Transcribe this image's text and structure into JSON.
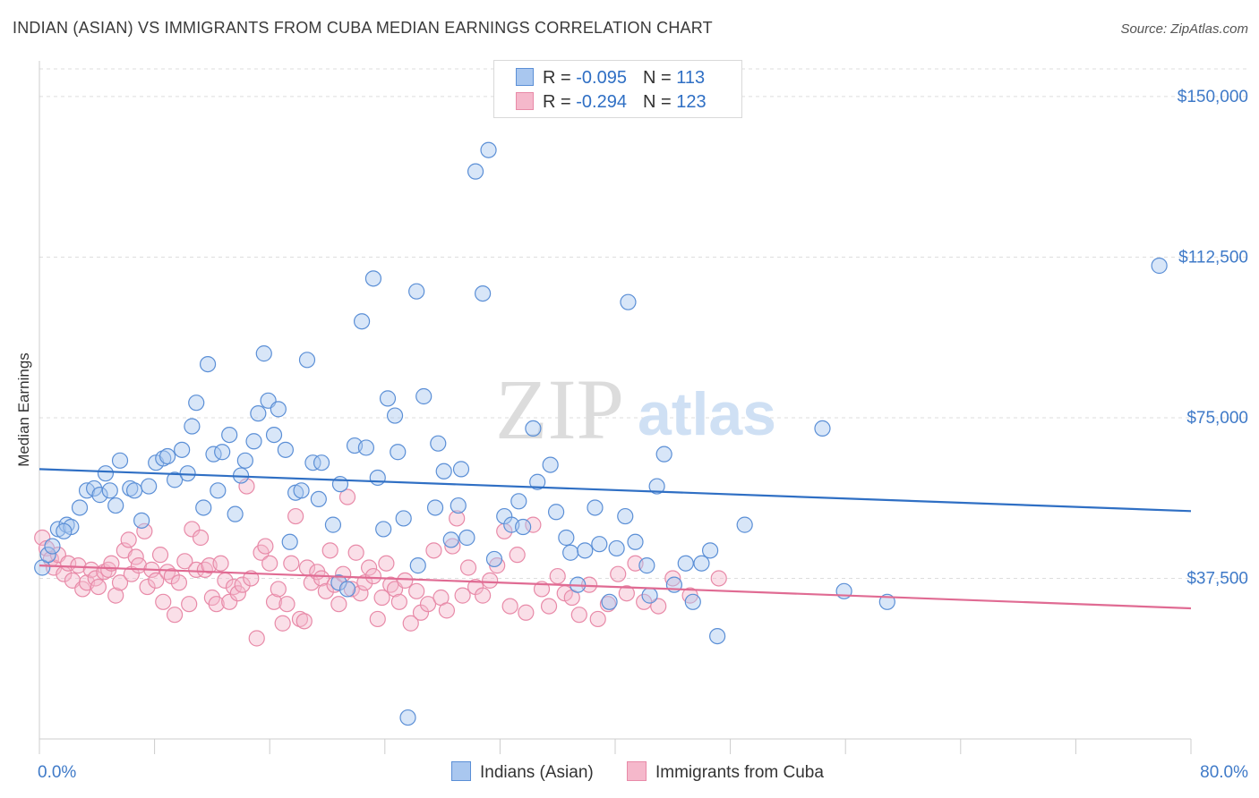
{
  "title": "INDIAN (ASIAN) VS IMMIGRANTS FROM CUBA MEDIAN EARNINGS CORRELATION CHART",
  "source": "Source: ZipAtlas.com",
  "watermark": {
    "zip": "ZIP",
    "atlas": "atlas"
  },
  "legend": {
    "series1": {
      "r_label": "R = ",
      "r_value": "-0.095",
      "n_label": "N = ",
      "n_value": "113"
    },
    "series2": {
      "r_label": "R = ",
      "r_value": "-0.294",
      "n_label": "N = ",
      "n_value": "123"
    }
  },
  "colors": {
    "blue_fill": "#a9c7ef",
    "blue_stroke": "#5b8fd6",
    "blue_line": "#2f6fc4",
    "pink_fill": "#f5b8cb",
    "pink_stroke": "#e88aa8",
    "pink_line": "#e06b93",
    "axis_label": "#3f7ac8",
    "grid": "#dddddd"
  },
  "chart_data": {
    "type": "scatter",
    "xlabel": "",
    "ylabel": "Median Earnings",
    "xlim": [
      0,
      80
    ],
    "ylim": [
      0,
      160000
    ],
    "x_tick_labels": [
      "0.0%",
      "80.0%"
    ],
    "y_ticks": [
      37500,
      75000,
      112500,
      150000
    ],
    "y_tick_labels": [
      "$37,500",
      "$75,000",
      "$112,500",
      "$150,000"
    ],
    "grid": "horizontal-dashed",
    "legend_placement": "top-center",
    "series": [
      {
        "name": "Indians (Asian)",
        "trend": [
          [
            0,
            63000
          ],
          [
            80,
            53200
          ]
        ],
        "points": [
          [
            0.2,
            40000
          ],
          [
            0.6,
            43000
          ],
          [
            0.9,
            45000
          ],
          [
            1.3,
            49000
          ],
          [
            1.9,
            50000
          ],
          [
            2.2,
            49500
          ],
          [
            1.7,
            48500
          ],
          [
            2.8,
            54000
          ],
          [
            3.3,
            58000
          ],
          [
            3.8,
            58500
          ],
          [
            4.2,
            57000
          ],
          [
            4.6,
            62000
          ],
          [
            4.9,
            58000
          ],
          [
            5.3,
            54500
          ],
          [
            5.6,
            65000
          ],
          [
            6.3,
            58500
          ],
          [
            6.6,
            58000
          ],
          [
            7.1,
            51000
          ],
          [
            7.6,
            59000
          ],
          [
            8.1,
            64500
          ],
          [
            8.6,
            65500
          ],
          [
            8.9,
            66000
          ],
          [
            9.4,
            60500
          ],
          [
            9.9,
            67500
          ],
          [
            10.3,
            62000
          ],
          [
            10.6,
            73000
          ],
          [
            10.9,
            78500
          ],
          [
            11.4,
            54000
          ],
          [
            11.7,
            87500
          ],
          [
            12.1,
            66500
          ],
          [
            12.4,
            58000
          ],
          [
            12.7,
            67000
          ],
          [
            13.2,
            71000
          ],
          [
            13.6,
            52500
          ],
          [
            14.0,
            61500
          ],
          [
            14.3,
            65000
          ],
          [
            14.9,
            69500
          ],
          [
            15.2,
            76000
          ],
          [
            15.6,
            90000
          ],
          [
            15.9,
            79000
          ],
          [
            16.3,
            71000
          ],
          [
            16.6,
            77000
          ],
          [
            17.1,
            67500
          ],
          [
            17.4,
            46000
          ],
          [
            17.8,
            57500
          ],
          [
            18.2,
            58000
          ],
          [
            18.6,
            88500
          ],
          [
            19.0,
            64500
          ],
          [
            19.4,
            56000
          ],
          [
            19.6,
            64500
          ],
          [
            20.4,
            50000
          ],
          [
            20.8,
            36500
          ],
          [
            20.9,
            59500
          ],
          [
            21.4,
            35000
          ],
          [
            21.9,
            68500
          ],
          [
            22.4,
            97500
          ],
          [
            22.7,
            68000
          ],
          [
            23.2,
            107500
          ],
          [
            23.5,
            61000
          ],
          [
            23.9,
            49000
          ],
          [
            24.2,
            79500
          ],
          [
            24.7,
            75500
          ],
          [
            24.9,
            67000
          ],
          [
            25.3,
            51500
          ],
          [
            25.6,
            5000
          ],
          [
            26.2,
            104500
          ],
          [
            26.3,
            40500
          ],
          [
            26.7,
            80000
          ],
          [
            27.5,
            54000
          ],
          [
            27.7,
            69000
          ],
          [
            28.1,
            62500
          ],
          [
            28.6,
            46500
          ],
          [
            29.1,
            54500
          ],
          [
            29.3,
            63000
          ],
          [
            29.7,
            47000
          ],
          [
            30.3,
            132500
          ],
          [
            30.8,
            104000
          ],
          [
            31.2,
            137500
          ],
          [
            31.6,
            42000
          ],
          [
            32.3,
            52000
          ],
          [
            32.8,
            50000
          ],
          [
            33.3,
            55500
          ],
          [
            33.6,
            49500
          ],
          [
            34.3,
            72500
          ],
          [
            34.6,
            60000
          ],
          [
            35.5,
            64000
          ],
          [
            35.9,
            53000
          ],
          [
            36.6,
            47000
          ],
          [
            36.9,
            43500
          ],
          [
            37.4,
            36000
          ],
          [
            37.9,
            44000
          ],
          [
            38.6,
            54000
          ],
          [
            38.9,
            45500
          ],
          [
            39.6,
            32000
          ],
          [
            40.1,
            44500
          ],
          [
            40.7,
            52000
          ],
          [
            40.9,
            102000
          ],
          [
            41.4,
            46000
          ],
          [
            42.2,
            40500
          ],
          [
            42.4,
            33500
          ],
          [
            42.9,
            59000
          ],
          [
            43.4,
            66500
          ],
          [
            44.1,
            36000
          ],
          [
            44.9,
            41000
          ],
          [
            45.4,
            32000
          ],
          [
            46.0,
            41000
          ],
          [
            46.6,
            44000
          ],
          [
            47.1,
            24000
          ],
          [
            49.0,
            50000
          ],
          [
            54.4,
            72500
          ],
          [
            55.9,
            34500
          ],
          [
            58.9,
            32000
          ],
          [
            77.8,
            110500
          ]
        ]
      },
      {
        "name": "Immigrants from Cuba",
        "trend": [
          [
            0,
            40500
          ],
          [
            80,
            30500
          ]
        ],
        "points": [
          [
            0.2,
            47000
          ],
          [
            0.5,
            44500
          ],
          [
            0.8,
            42000
          ],
          [
            1.0,
            40000
          ],
          [
            1.3,
            43000
          ],
          [
            1.7,
            38500
          ],
          [
            2.0,
            41000
          ],
          [
            2.3,
            37000
          ],
          [
            2.7,
            40500
          ],
          [
            3.0,
            35000
          ],
          [
            3.3,
            36500
          ],
          [
            3.6,
            39500
          ],
          [
            3.9,
            37500
          ],
          [
            4.1,
            35500
          ],
          [
            4.5,
            39000
          ],
          [
            4.8,
            39500
          ],
          [
            5.0,
            41000
          ],
          [
            5.3,
            33500
          ],
          [
            5.6,
            36500
          ],
          [
            5.9,
            44000
          ],
          [
            6.2,
            46500
          ],
          [
            6.4,
            38500
          ],
          [
            6.7,
            42500
          ],
          [
            6.9,
            40500
          ],
          [
            7.3,
            48500
          ],
          [
            7.5,
            35500
          ],
          [
            7.8,
            39500
          ],
          [
            8.1,
            37000
          ],
          [
            8.4,
            43000
          ],
          [
            8.6,
            32000
          ],
          [
            8.9,
            39000
          ],
          [
            9.2,
            38000
          ],
          [
            9.4,
            29000
          ],
          [
            9.7,
            36500
          ],
          [
            10.1,
            41500
          ],
          [
            10.4,
            31500
          ],
          [
            10.6,
            49000
          ],
          [
            10.9,
            39500
          ],
          [
            11.2,
            47000
          ],
          [
            11.5,
            39500
          ],
          [
            11.8,
            40500
          ],
          [
            12.0,
            33000
          ],
          [
            12.3,
            31500
          ],
          [
            12.6,
            41000
          ],
          [
            12.9,
            37000
          ],
          [
            13.2,
            32000
          ],
          [
            13.5,
            35500
          ],
          [
            13.8,
            34000
          ],
          [
            14.1,
            36000
          ],
          [
            14.4,
            59000
          ],
          [
            14.7,
            37500
          ],
          [
            15.1,
            23500
          ],
          [
            15.4,
            43500
          ],
          [
            15.7,
            45000
          ],
          [
            16.0,
            41000
          ],
          [
            16.3,
            32000
          ],
          [
            16.6,
            35000
          ],
          [
            16.9,
            27000
          ],
          [
            17.2,
            31500
          ],
          [
            17.5,
            41000
          ],
          [
            17.8,
            52000
          ],
          [
            18.1,
            28000
          ],
          [
            18.4,
            27500
          ],
          [
            18.6,
            40000
          ],
          [
            18.9,
            36500
          ],
          [
            19.3,
            39000
          ],
          [
            19.6,
            37500
          ],
          [
            19.9,
            34500
          ],
          [
            20.2,
            44000
          ],
          [
            20.5,
            36000
          ],
          [
            20.8,
            31500
          ],
          [
            21.1,
            38500
          ],
          [
            21.4,
            56500
          ],
          [
            21.7,
            35000
          ],
          [
            22.0,
            43500
          ],
          [
            22.3,
            34000
          ],
          [
            22.6,
            36500
          ],
          [
            22.9,
            40000
          ],
          [
            23.2,
            38000
          ],
          [
            23.5,
            28000
          ],
          [
            23.8,
            33000
          ],
          [
            24.1,
            41000
          ],
          [
            24.4,
            36000
          ],
          [
            24.7,
            35000
          ],
          [
            25.0,
            32000
          ],
          [
            25.4,
            37000
          ],
          [
            25.8,
            27000
          ],
          [
            26.2,
            34500
          ],
          [
            26.5,
            29500
          ],
          [
            27.0,
            31500
          ],
          [
            27.4,
            44000
          ],
          [
            27.9,
            33000
          ],
          [
            28.3,
            30000
          ],
          [
            28.7,
            45000
          ],
          [
            29.0,
            51500
          ],
          [
            29.4,
            33500
          ],
          [
            29.8,
            40000
          ],
          [
            30.3,
            35500
          ],
          [
            30.8,
            33500
          ],
          [
            31.3,
            37000
          ],
          [
            31.8,
            40500
          ],
          [
            32.3,
            48500
          ],
          [
            32.7,
            31000
          ],
          [
            33.2,
            43000
          ],
          [
            33.8,
            29500
          ],
          [
            34.3,
            50000
          ],
          [
            34.9,
            35000
          ],
          [
            35.4,
            31000
          ],
          [
            36.0,
            38000
          ],
          [
            36.5,
            34000
          ],
          [
            37.0,
            33000
          ],
          [
            37.5,
            29000
          ],
          [
            38.2,
            36000
          ],
          [
            38.8,
            28000
          ],
          [
            39.5,
            31500
          ],
          [
            40.2,
            38500
          ],
          [
            40.8,
            34000
          ],
          [
            41.4,
            41000
          ],
          [
            42.0,
            32000
          ],
          [
            43.0,
            31000
          ],
          [
            44.0,
            37500
          ],
          [
            45.2,
            33500
          ],
          [
            47.2,
            37500
          ]
        ]
      }
    ]
  },
  "bottom_legend": {
    "series1_label": "Indians (Asian)",
    "series2_label": "Immigrants from Cuba"
  }
}
